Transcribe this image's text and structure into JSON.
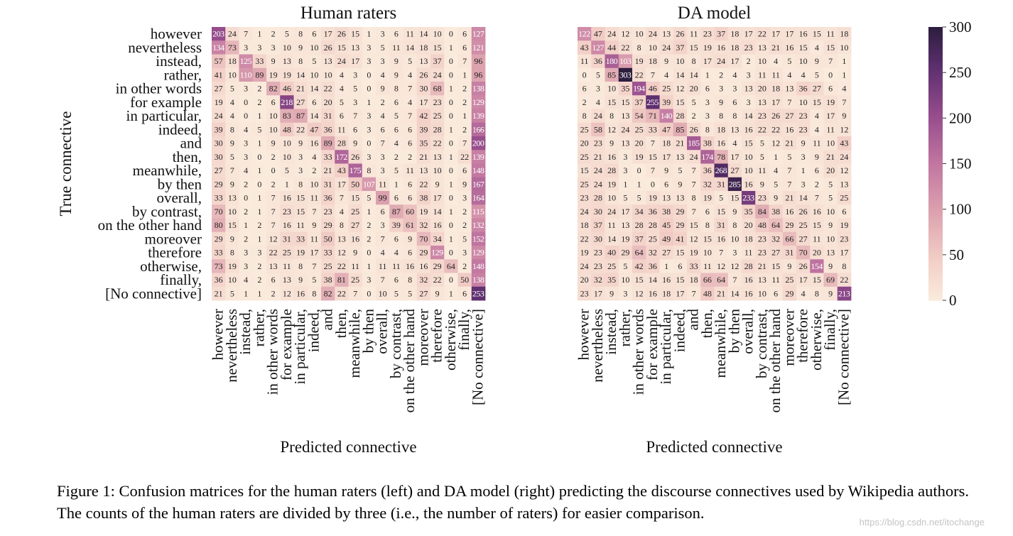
{
  "chart_data": {
    "type": "heatmap",
    "ylabel": "True connective",
    "xlabel": "Predicted connective",
    "labels": [
      "however",
      "nevertheless",
      "instead,",
      "rather,",
      "in other words",
      "for example",
      "in particular,",
      "indeed,",
      "and",
      "then,",
      "meanwhile,",
      "by then",
      "overall,",
      "by contrast,",
      "on the other hand",
      "moreover",
      "therefore",
      "otherwise,",
      "finally,",
      "[No connective]"
    ],
    "colorbar": {
      "min": 0,
      "max": 300,
      "ticks": [
        0,
        50,
        100,
        150,
        200,
        250,
        300
      ]
    },
    "panels": [
      {
        "title": "Human raters",
        "values": [
          [
            203,
            24,
            7,
            1,
            2,
            5,
            8,
            6,
            17,
            26,
            15,
            1,
            3,
            6,
            11,
            14,
            10,
            0,
            6,
            127
          ],
          [
            134,
            73,
            3,
            3,
            3,
            10,
            9,
            10,
            26,
            15,
            13,
            3,
            5,
            11,
            14,
            18,
            15,
            1,
            6,
            121
          ],
          [
            57,
            18,
            125,
            33,
            9,
            13,
            8,
            5,
            13,
            24,
            17,
            3,
            3,
            9,
            5,
            13,
            37,
            0,
            7,
            96
          ],
          [
            41,
            10,
            110,
            89,
            19,
            19,
            14,
            10,
            10,
            4,
            3,
            0,
            4,
            9,
            4,
            26,
            24,
            0,
            1,
            96
          ],
          [
            27,
            5,
            3,
            2,
            82,
            46,
            21,
            14,
            22,
            4,
            5,
            0,
            9,
            8,
            7,
            30,
            68,
            1,
            2,
            138
          ],
          [
            19,
            4,
            0,
            2,
            6,
            218,
            27,
            6,
            20,
            5,
            3,
            1,
            2,
            6,
            4,
            17,
            23,
            0,
            2,
            129
          ],
          [
            24,
            4,
            0,
            1,
            10,
            83,
            87,
            14,
            31,
            6,
            7,
            3,
            4,
            5,
            7,
            42,
            25,
            0,
            1,
            139
          ],
          [
            39,
            8,
            4,
            5,
            10,
            48,
            22,
            47,
            36,
            11,
            6,
            3,
            6,
            6,
            6,
            39,
            28,
            1,
            2,
            166
          ],
          [
            30,
            9,
            3,
            1,
            9,
            10,
            9,
            16,
            89,
            28,
            9,
            0,
            7,
            4,
            6,
            35,
            22,
            0,
            7,
            200
          ],
          [
            30,
            5,
            3,
            0,
            2,
            10,
            3,
            4,
            33,
            172,
            26,
            3,
            3,
            2,
            2,
            21,
            13,
            1,
            22,
            139
          ],
          [
            27,
            7,
            4,
            1,
            0,
            5,
            3,
            2,
            21,
            43,
            175,
            8,
            3,
            5,
            11,
            13,
            10,
            0,
            6,
            148
          ],
          [
            29,
            9,
            2,
            0,
            2,
            1,
            8,
            10,
            31,
            17,
            50,
            107,
            11,
            1,
            6,
            22,
            9,
            1,
            9,
            167
          ],
          [
            33,
            13,
            0,
            1,
            7,
            16,
            15,
            11,
            36,
            7,
            15,
            5,
            99,
            6,
            6,
            38,
            17,
            0,
            3,
            164
          ],
          [
            70,
            10,
            2,
            1,
            7,
            23,
            15,
            7,
            23,
            4,
            25,
            1,
            6,
            87,
            60,
            19,
            14,
            1,
            2,
            115
          ],
          [
            80,
            15,
            1,
            2,
            7,
            16,
            11,
            9,
            29,
            8,
            27,
            2,
            3,
            39,
            61,
            32,
            16,
            0,
            2,
            132
          ],
          [
            29,
            9,
            2,
            1,
            12,
            31,
            33,
            11,
            50,
            13,
            16,
            2,
            7,
            6,
            9,
            70,
            34,
            1,
            5,
            152
          ],
          [
            33,
            8,
            3,
            3,
            22,
            25,
            19,
            17,
            33,
            12,
            9,
            0,
            4,
            4,
            6,
            29,
            129,
            0,
            3,
            129
          ],
          [
            73,
            19,
            3,
            2,
            13,
            11,
            8,
            7,
            25,
            22,
            11,
            1,
            11,
            11,
            16,
            16,
            29,
            64,
            2,
            148
          ],
          [
            36,
            10,
            4,
            2,
            6,
            13,
            9,
            5,
            38,
            81,
            25,
            3,
            7,
            6,
            8,
            32,
            22,
            0,
            50,
            138
          ],
          [
            21,
            5,
            1,
            1,
            2,
            12,
            16,
            8,
            82,
            22,
            7,
            0,
            10,
            5,
            5,
            27,
            9,
            1,
            6,
            253
          ]
        ]
      },
      {
        "title": "DA model",
        "values": [
          [
            122,
            47,
            24,
            12,
            10,
            24,
            13,
            26,
            11,
            23,
            37,
            18,
            17,
            22,
            17,
            17,
            16,
            15,
            11,
            18
          ],
          [
            43,
            127,
            44,
            22,
            8,
            10,
            24,
            37,
            15,
            19,
            16,
            18,
            23,
            13,
            21,
            16,
            15,
            4,
            15,
            10
          ],
          [
            11,
            36,
            180,
            103,
            19,
            18,
            9,
            10,
            8,
            17,
            24,
            17,
            2,
            10,
            4,
            5,
            10,
            9,
            7,
            1
          ],
          [
            0,
            5,
            85,
            303,
            22,
            7,
            4,
            14,
            14,
            1,
            2,
            4,
            3,
            11,
            11,
            4,
            4,
            5,
            0,
            1
          ],
          [
            6,
            3,
            10,
            35,
            194,
            46,
            25,
            12,
            20,
            6,
            3,
            3,
            13,
            20,
            18,
            13,
            36,
            27,
            6,
            4
          ],
          [
            2,
            4,
            15,
            15,
            37,
            255,
            39,
            15,
            5,
            3,
            9,
            6,
            3,
            13,
            17,
            7,
            10,
            15,
            19,
            7
          ],
          [
            8,
            24,
            8,
            13,
            54,
            71,
            140,
            28,
            2,
            3,
            8,
            8,
            14,
            23,
            26,
            27,
            23,
            4,
            17,
            9
          ],
          [
            25,
            58,
            12,
            24,
            25,
            33,
            47,
            85,
            26,
            8,
            18,
            13,
            16,
            22,
            22,
            16,
            23,
            4,
            11,
            12
          ],
          [
            20,
            23,
            9,
            13,
            20,
            7,
            18,
            21,
            185,
            38,
            16,
            4,
            15,
            5,
            12,
            21,
            9,
            11,
            10,
            43
          ],
          [
            25,
            21,
            16,
            3,
            19,
            15,
            17,
            13,
            24,
            174,
            78,
            17,
            10,
            5,
            1,
            5,
            3,
            9,
            21,
            24
          ],
          [
            15,
            24,
            28,
            3,
            0,
            7,
            9,
            5,
            7,
            36,
            268,
            27,
            10,
            11,
            4,
            7,
            1,
            6,
            20,
            12
          ],
          [
            25,
            24,
            19,
            1,
            1,
            0,
            6,
            9,
            7,
            32,
            31,
            285,
            16,
            9,
            5,
            7,
            3,
            2,
            5,
            13
          ],
          [
            23,
            28,
            10,
            5,
            5,
            19,
            13,
            13,
            8,
            19,
            5,
            15,
            233,
            23,
            9,
            21,
            14,
            7,
            5,
            25
          ],
          [
            24,
            30,
            24,
            17,
            34,
            36,
            38,
            29,
            7,
            6,
            15,
            9,
            35,
            84,
            38,
            16,
            26,
            16,
            10,
            6
          ],
          [
            18,
            37,
            11,
            13,
            28,
            28,
            45,
            29,
            15,
            8,
            31,
            8,
            20,
            48,
            64,
            29,
            25,
            15,
            9,
            19
          ],
          [
            22,
            30,
            14,
            19,
            37,
            25,
            49,
            41,
            12,
            15,
            16,
            10,
            18,
            23,
            32,
            66,
            27,
            11,
            10,
            23
          ],
          [
            19,
            23,
            40,
            29,
            64,
            32,
            27,
            15,
            19,
            10,
            7,
            3,
            11,
            23,
            27,
            31,
            70,
            20,
            13,
            17
          ],
          [
            24,
            23,
            25,
            5,
            42,
            36,
            1,
            6,
            33,
            11,
            12,
            12,
            28,
            21,
            15,
            9,
            26,
            154,
            9,
            8
          ],
          [
            20,
            32,
            35,
            10,
            15,
            14,
            16,
            15,
            18,
            66,
            64,
            7,
            16,
            13,
            11,
            25,
            17,
            15,
            69,
            22
          ],
          [
            23,
            17,
            9,
            3,
            12,
            16,
            18,
            17,
            7,
            48,
            21,
            14,
            16,
            10,
            6,
            29,
            4,
            8,
            9,
            213
          ]
        ]
      }
    ]
  },
  "caption": "Figure 1: Confusion matrices for the human raters (left) and DA model (right) predicting the discourse connectives used by Wikipedia authors. The counts of the human raters are divided by three (i.e., the number of raters) for easier comparison.",
  "watermark": "https://blog.csdn.net/itochange"
}
